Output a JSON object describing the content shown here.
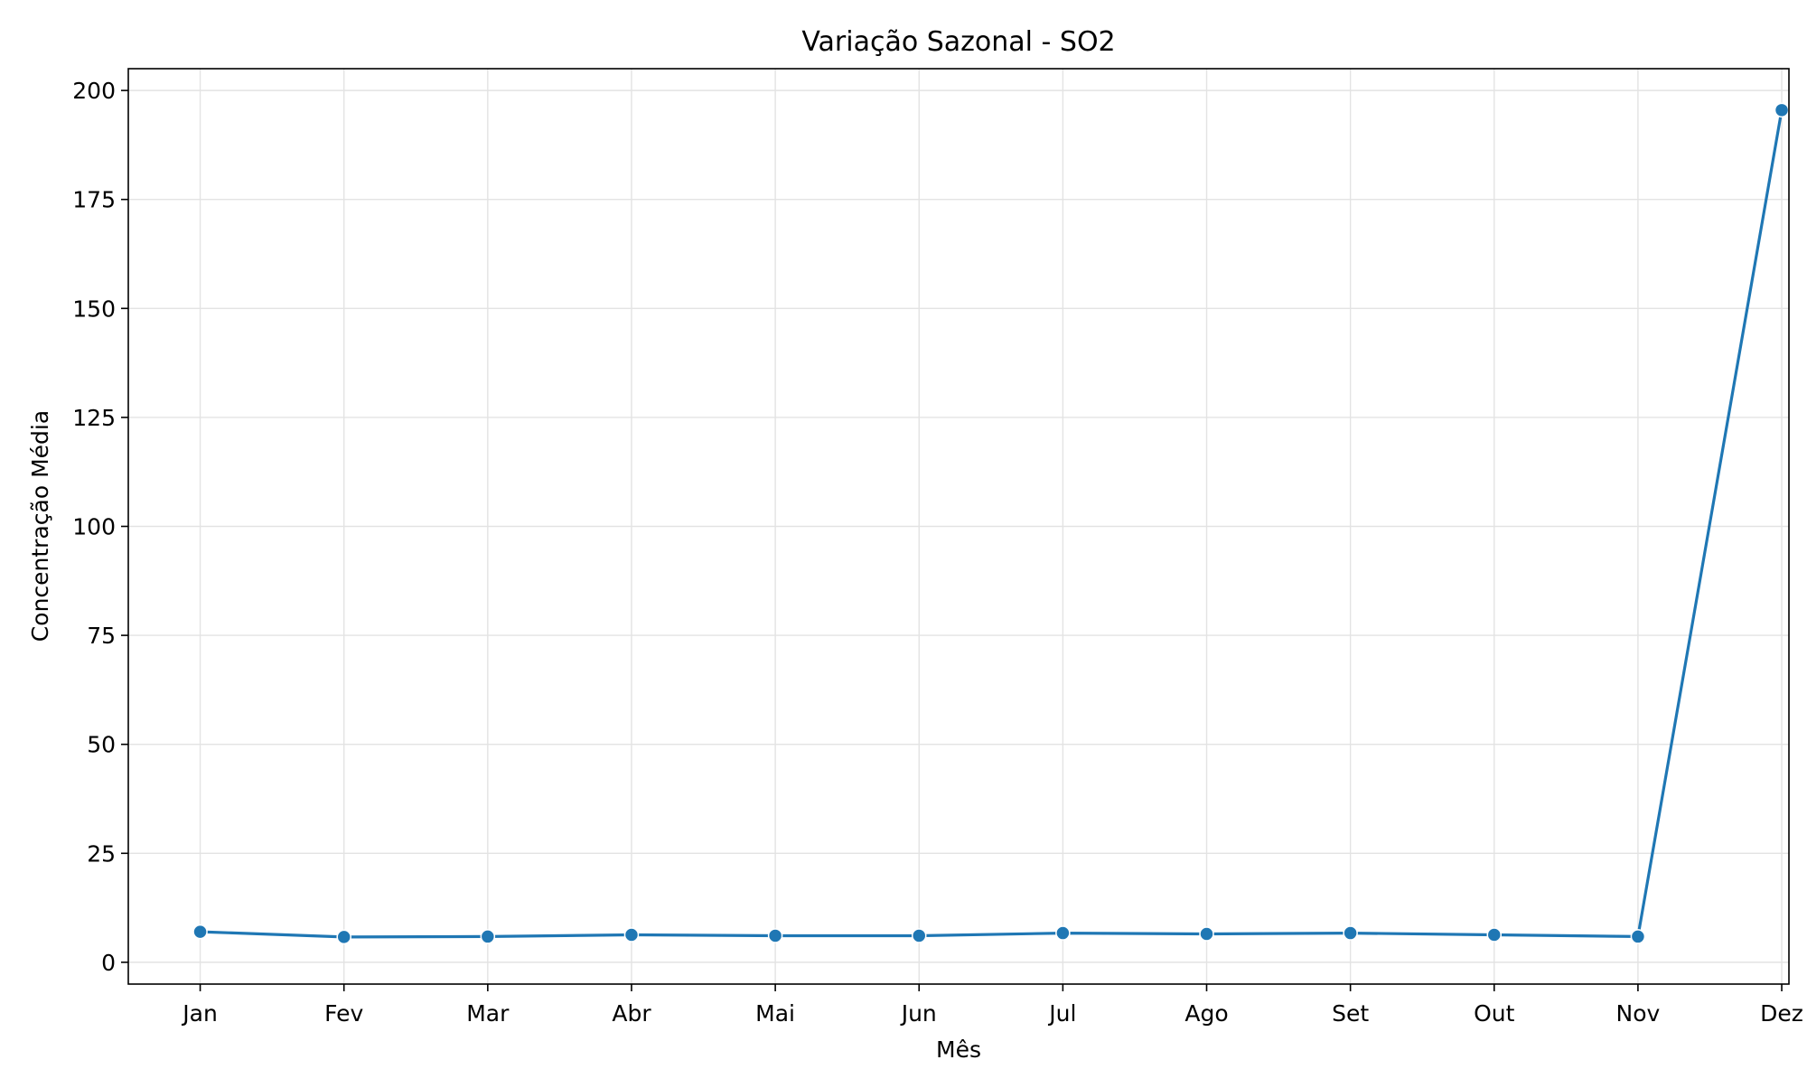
{
  "chart_data": {
    "type": "line",
    "title": "Variação Sazonal - SO2",
    "xlabel": "Mês",
    "ylabel": "Concentração Média",
    "categories": [
      "Jan",
      "Fev",
      "Mar",
      "Abr",
      "Mai",
      "Jun",
      "Jul",
      "Ago",
      "Set",
      "Out",
      "Nov",
      "Dez"
    ],
    "series": [
      {
        "values": [
          7.0,
          5.8,
          5.9,
          6.3,
          6.1,
          6.1,
          6.7,
          6.5,
          6.7,
          6.3,
          5.9,
          195.5
        ],
        "color": "#1f77b4"
      }
    ],
    "ylim": [
      -5,
      205
    ],
    "yticks": [
      0,
      25,
      50,
      75,
      100,
      125,
      150,
      175,
      200
    ],
    "grid": true
  }
}
